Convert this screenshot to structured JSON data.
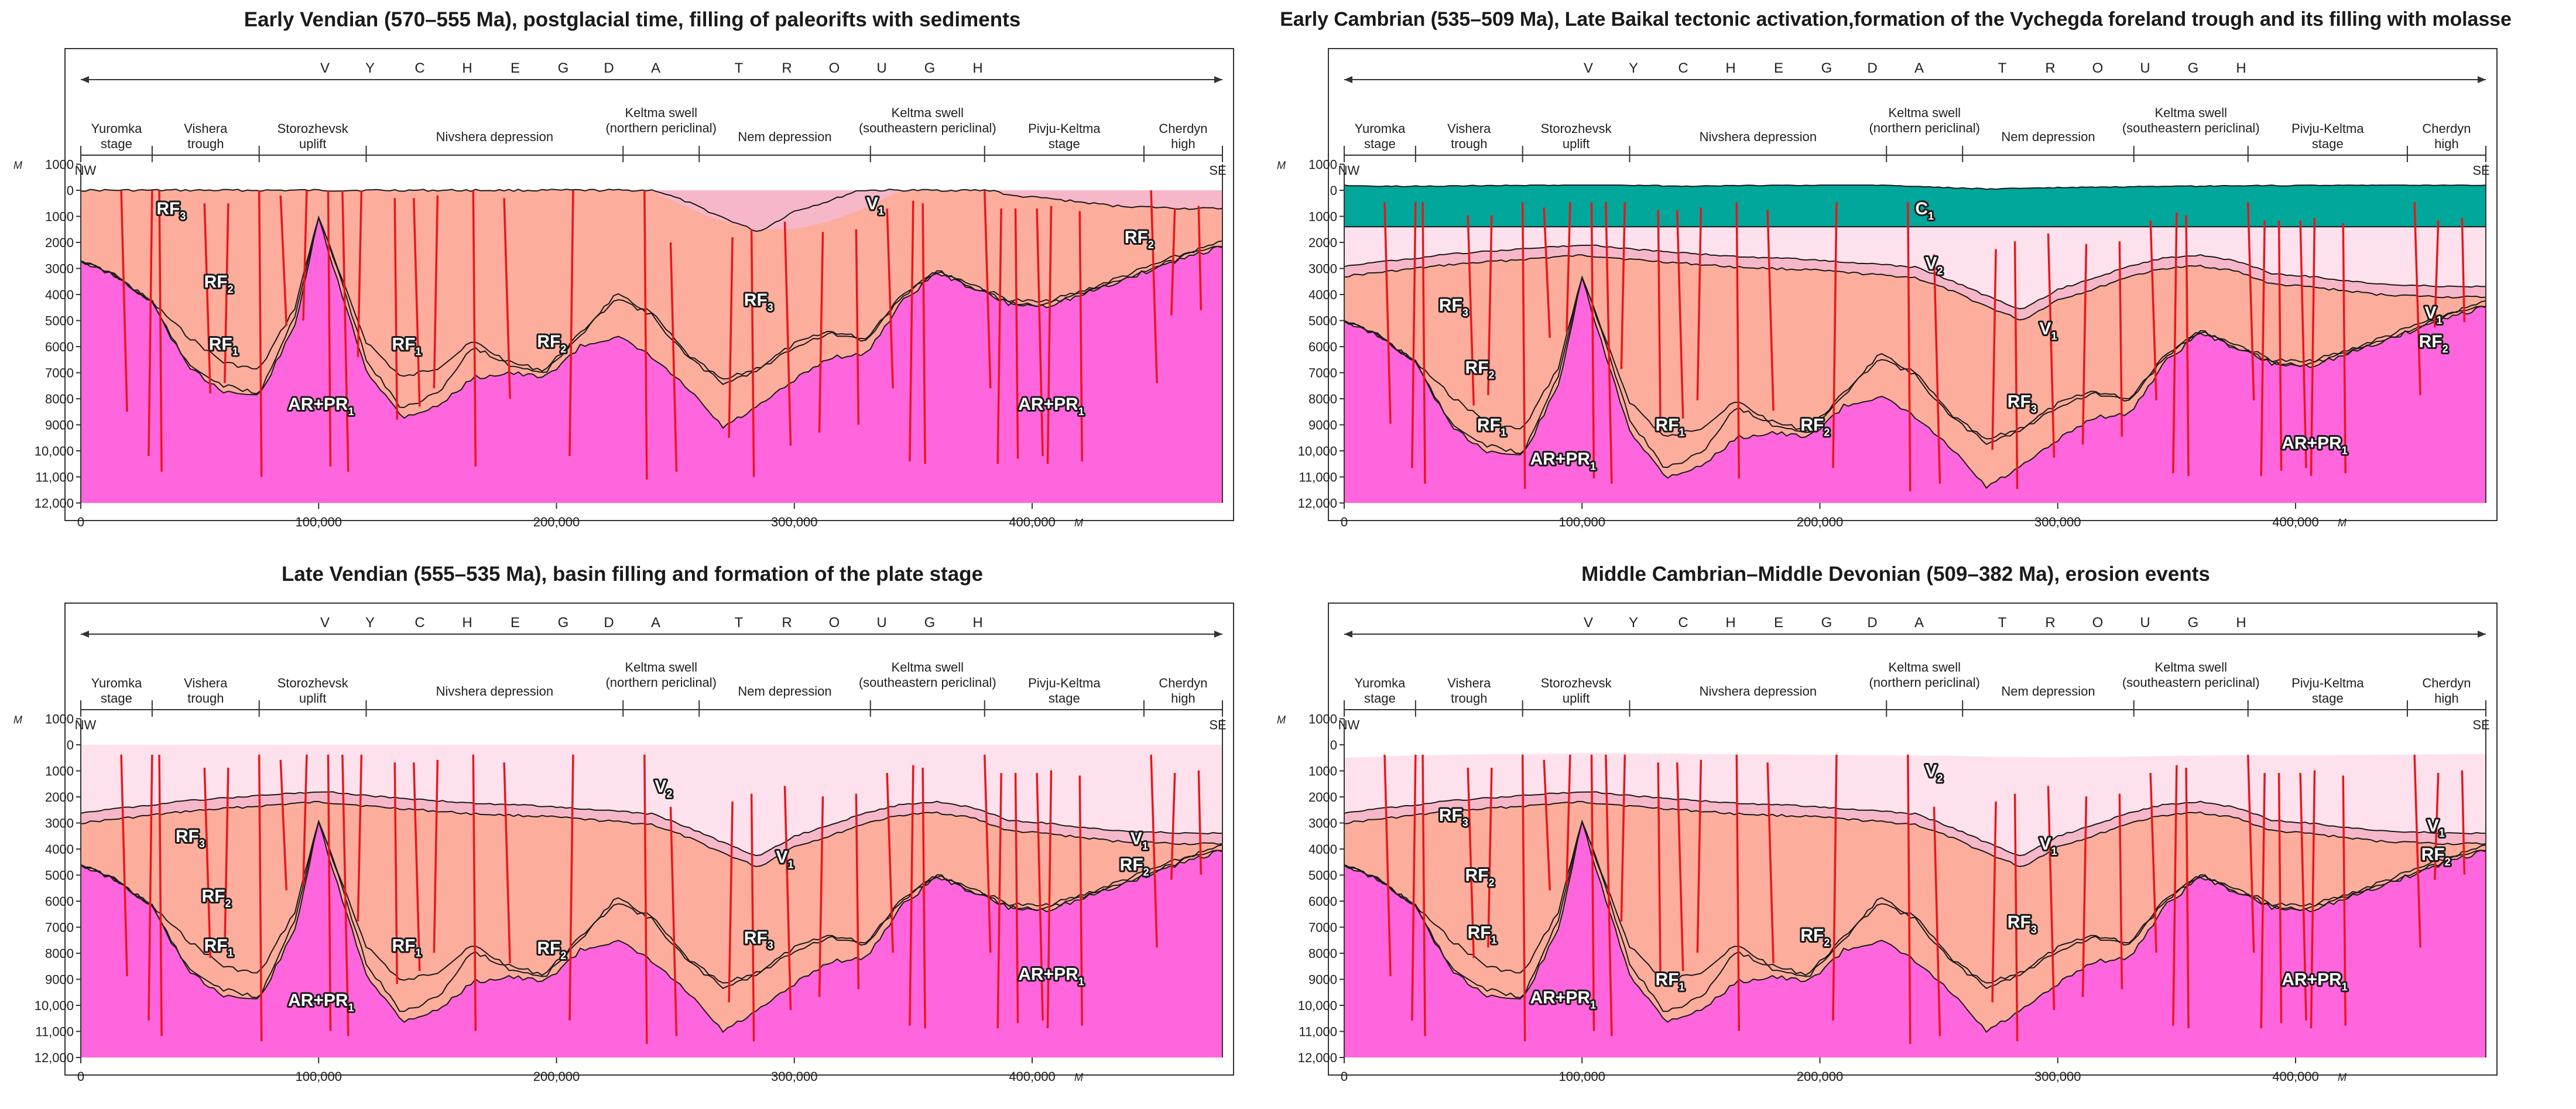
{
  "panels": [
    {
      "title": "Early Vendian (570–555 Ma), postglacial time, filling of paleorifts with sediments"
    },
    {
      "title": "Early Cambrian (535–509 Ma), Late Baikal tectonic activation,formation of the Vychegda foreland trough and its filling with molasse"
    },
    {
      "title": "Late Vendian (555–535 Ma), basin filling and formation of the plate stage"
    },
    {
      "title": "Middle Cambrian–Middle Devonian (509–382 Ma), erosion events"
    }
  ],
  "section": {
    "trough_letters": [
      "V",
      "Y",
      "C",
      "H",
      "E",
      "G",
      "D",
      "A",
      "T",
      "R",
      "O",
      "U",
      "G",
      "H"
    ],
    "structures": [
      {
        "l1": "Yuromka",
        "l2": "stage"
      },
      {
        "l1": "Vishera",
        "l2": "trough"
      },
      {
        "l1": "Storozhevsk",
        "l2": "uplift"
      },
      {
        "l1": "Nivshera depression",
        "l2": ""
      },
      {
        "l1": "Keltma swell",
        "l2": "(northern periclinal)"
      },
      {
        "l1": "Nem depression",
        "l2": ""
      },
      {
        "l1": "Keltma swell",
        "l2": "(southeastern periclinal)"
      },
      {
        "l1": "Pivju-Keltma",
        "l2": "stage"
      },
      {
        "l1": "Cherdyn",
        "l2": "high"
      }
    ],
    "nw": "NW",
    "se": "SE",
    "depth_unit": "M",
    "depth_ticks": [
      "1000",
      "0",
      "1000",
      "2000",
      "3000",
      "4000",
      "5000",
      "6000",
      "7000",
      "8000",
      "9000",
      "10,000",
      "11,000",
      "12,000"
    ],
    "x_ticks": [
      "0",
      "100,000",
      "200,000",
      "300,000",
      "400,000"
    ],
    "x_unit": "M"
  },
  "units": {
    "rf3": "RF",
    "rf3_sub": "3",
    "rf2": "RF",
    "rf2_sub": "2",
    "rf1": "RF",
    "rf1_sub": "1",
    "ar": "AR+PR",
    "ar_sub": "1",
    "v1": "V",
    "v1_sub": "1",
    "v2": "V",
    "v2_sub": "2",
    "c1": "C",
    "c1_sub": "1"
  },
  "colors": {
    "basement": "#ff66dd",
    "rf1": "#fa6b67",
    "rf2": "#fb8f7e",
    "rf3": "#fdad9c",
    "v1": "#f6b8c8",
    "v2": "#fde2ee",
    "c1": "#00a79a",
    "fault": "#e8161b"
  }
}
